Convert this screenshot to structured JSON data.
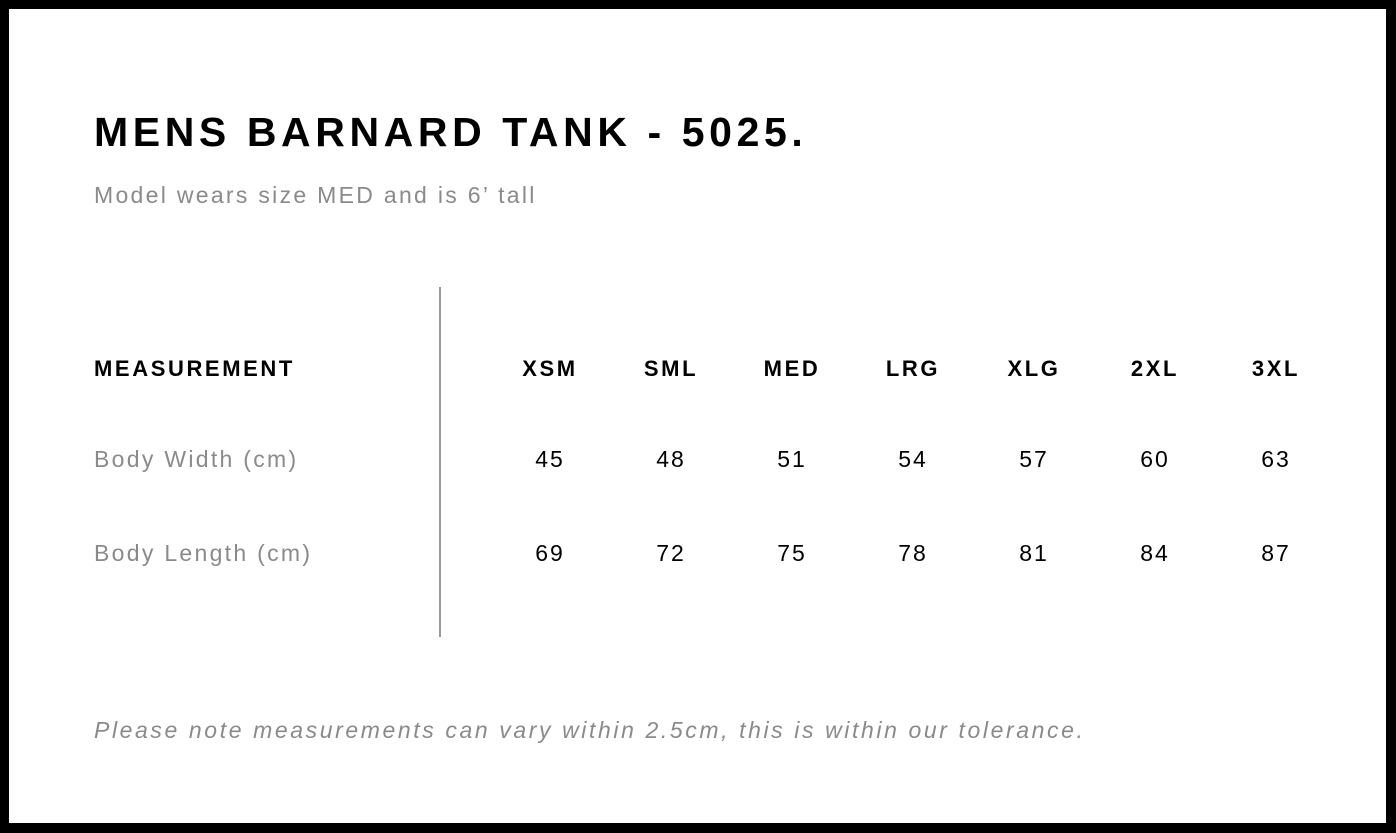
{
  "title": "MENS BARNARD TANK - 5025.",
  "subtitle": "Model wears size MED and is 6’ tall",
  "table": {
    "header_label": "MEASUREMENT",
    "sizes": [
      "XSM",
      "SML",
      "MED",
      "LRG",
      "XLG",
      "2XL",
      "3XL"
    ],
    "rows": [
      {
        "label": "Body Width (cm)",
        "values": [
          "45",
          "48",
          "51",
          "54",
          "57",
          "60",
          "63"
        ]
      },
      {
        "label": "Body Length (cm)",
        "values": [
          "69",
          "72",
          "75",
          "78",
          "81",
          "84",
          "87"
        ]
      }
    ]
  },
  "note": "Please note measurements can vary within 2.5cm, this is within our tolerance."
}
